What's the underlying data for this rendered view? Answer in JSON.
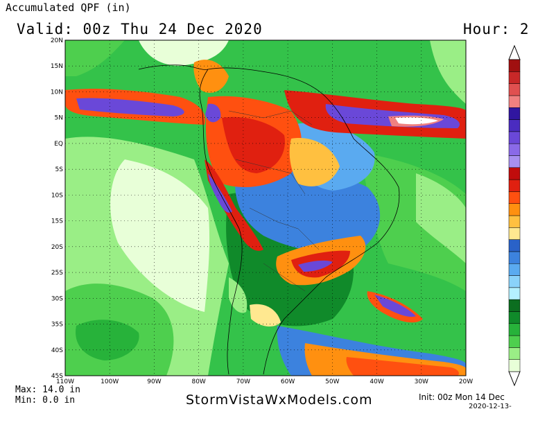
{
  "header": {
    "title": "Accumulated QPF (in)",
    "valid": "Valid: 00z Thu 24 Dec 2020",
    "hour": "Hour: 2"
  },
  "footer": {
    "max": "Max: 14.0 in",
    "min": "Min: 0.0 in",
    "brand": "StormVistaWxModels.com",
    "init": "Init: 00z Mon 14 Dec",
    "stamp": "2020-12-13-"
  },
  "map": {
    "lat_labels": [
      "20N",
      "15N",
      "10N",
      "5N",
      "EQ",
      "5S",
      "10S",
      "15S",
      "20S",
      "25S",
      "30S",
      "35S",
      "40S",
      "45S"
    ],
    "lon_labels": [
      "110W",
      "100W",
      "90W",
      "80W",
      "70W",
      "60W",
      "50W",
      "40W",
      "30W",
      "20W"
    ]
  },
  "colorbar": {
    "colors": [
      "#e8ffd8",
      "#9aee86",
      "#4ecf4e",
      "#27b23a",
      "#108a2a",
      "#0c6e20",
      "#b4f0ff",
      "#8ad2fa",
      "#5aaaf0",
      "#3c82de",
      "#2a62c8",
      "#ffe890",
      "#ffc040",
      "#ff9010",
      "#ff5010",
      "#e02010",
      "#c00c0c",
      "#a890f0",
      "#8a6ae8",
      "#6a48d8",
      "#4a2cc0",
      "#3016a0",
      "#f08080",
      "#e05050",
      "#c82828",
      "#a01010"
    ]
  }
}
